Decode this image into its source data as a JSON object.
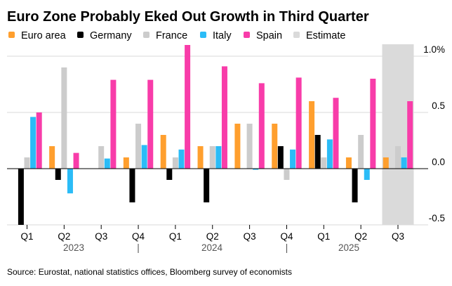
{
  "chart_data": {
    "type": "bar",
    "title": "Euro Zone Probably Eked Out Growth in Third Quarter",
    "source": "Source: Eurostat, national statistics offices, Bloomberg survey of economists",
    "categories": [
      "Q1",
      "Q2",
      "Q3",
      "Q4",
      "Q1",
      "Q2",
      "Q3",
      "Q4",
      "Q1",
      "Q2",
      "Q3"
    ],
    "years": [
      {
        "label": "2023"
      },
      {
        "label": "2024"
      },
      {
        "label": "2025"
      }
    ],
    "year_separator": "|",
    "series": [
      {
        "name": "Euro area",
        "color": "#ff9f2e",
        "values": [
          0.0,
          0.2,
          0.0,
          0.1,
          0.3,
          0.2,
          0.4,
          0.4,
          0.6,
          0.1,
          0.1
        ]
      },
      {
        "name": "Germany",
        "color": "#000000",
        "values": [
          -0.5,
          -0.1,
          0.0,
          -0.3,
          -0.1,
          -0.3,
          0.0,
          0.2,
          0.3,
          -0.3,
          0.0
        ]
      },
      {
        "name": "France",
        "color": "#cccccc",
        "values": [
          0.1,
          0.9,
          0.2,
          0.4,
          0.1,
          0.2,
          0.4,
          -0.1,
          0.1,
          0.3,
          0.2
        ]
      },
      {
        "name": "Italy",
        "color": "#2bbcf7",
        "values": [
          0.46,
          -0.22,
          0.09,
          0.21,
          0.17,
          0.2,
          -0.01,
          0.17,
          0.26,
          -0.1,
          0.1
        ]
      },
      {
        "name": "Spain",
        "color": "#f83ca9",
        "values": [
          0.5,
          0.14,
          0.79,
          0.79,
          1.1,
          0.91,
          0.76,
          0.81,
          0.63,
          0.8,
          0.6
        ]
      }
    ],
    "estimate": {
      "name": "Estimate",
      "color": "#dadada",
      "category_index": 10
    },
    "ylim": [
      -0.5,
      1.1
    ],
    "yticks": [
      {
        "value": 1.0,
        "label": "1.0%"
      },
      {
        "value": 0.5,
        "label": "0.5"
      },
      {
        "value": 0.0,
        "label": "0.0"
      },
      {
        "value": -0.5,
        "label": "-0.5"
      }
    ],
    "y_axis_position": "right",
    "grid": true,
    "legend_position": "top-left",
    "xlabel": "",
    "ylabel": ""
  }
}
